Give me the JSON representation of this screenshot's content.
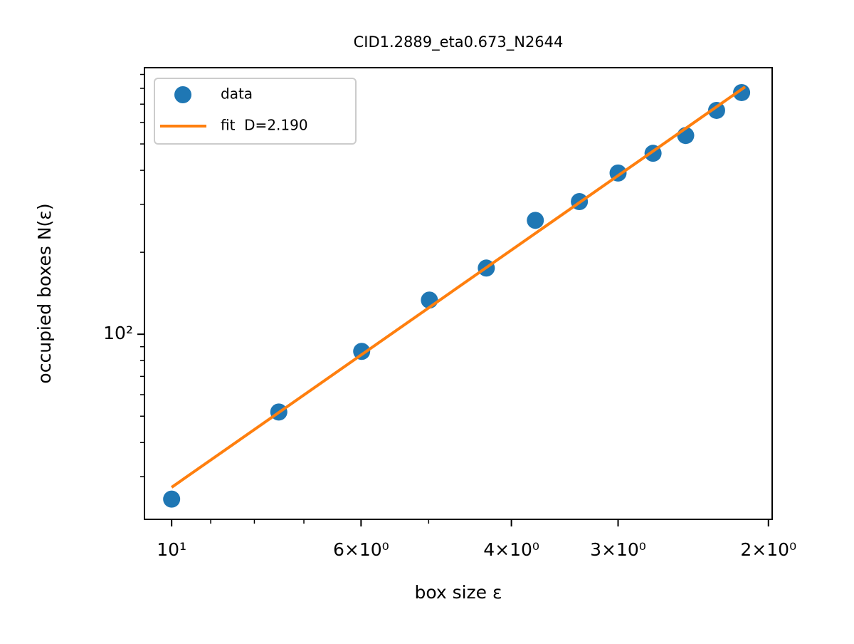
{
  "chart_data": {
    "type": "scatter",
    "title": "CID1.2889_eta0.673_N2644",
    "xlabel": "box size ε",
    "ylabel": "occupied boxes N(ε)",
    "xscale": "log",
    "yscale": "log",
    "xlim": [
      10.76,
      1.98
    ],
    "ylim": [
      20.9,
      953
    ],
    "xticks": [
      {
        "value": 10,
        "label": "10¹"
      },
      {
        "value": 6,
        "label": "6×10⁰"
      },
      {
        "value": 4,
        "label": "4×10⁰"
      },
      {
        "value": 3,
        "label": "3×10⁰"
      },
      {
        "value": 2,
        "label": "2×10⁰"
      }
    ],
    "xminorticks": [
      9,
      8,
      7,
      5
    ],
    "yticks": [
      {
        "value": 100,
        "label": "10²"
      }
    ],
    "yminorticks": [
      30,
      40,
      50,
      60,
      70,
      80,
      90,
      200,
      300,
      400,
      500,
      600,
      700,
      800,
      900
    ],
    "legend": "upper left",
    "series": [
      {
        "name": "data",
        "kind": "marker",
        "color": "#1f77b4",
        "x": [
          10,
          7.49,
          5.99,
          4.99,
          4.28,
          3.75,
          3.33,
          3.0,
          2.73,
          2.5,
          2.3,
          2.15
        ],
        "values": [
          24.8,
          51.8,
          86.5,
          133.5,
          175,
          262,
          307,
          391,
          462,
          537,
          664,
          772
        ]
      },
      {
        "name": "fit  D=2.190",
        "kind": "line",
        "color": "#ff7f0e",
        "x": [
          10,
          2.13
        ],
        "values": [
          27.4,
          810
        ]
      }
    ]
  }
}
